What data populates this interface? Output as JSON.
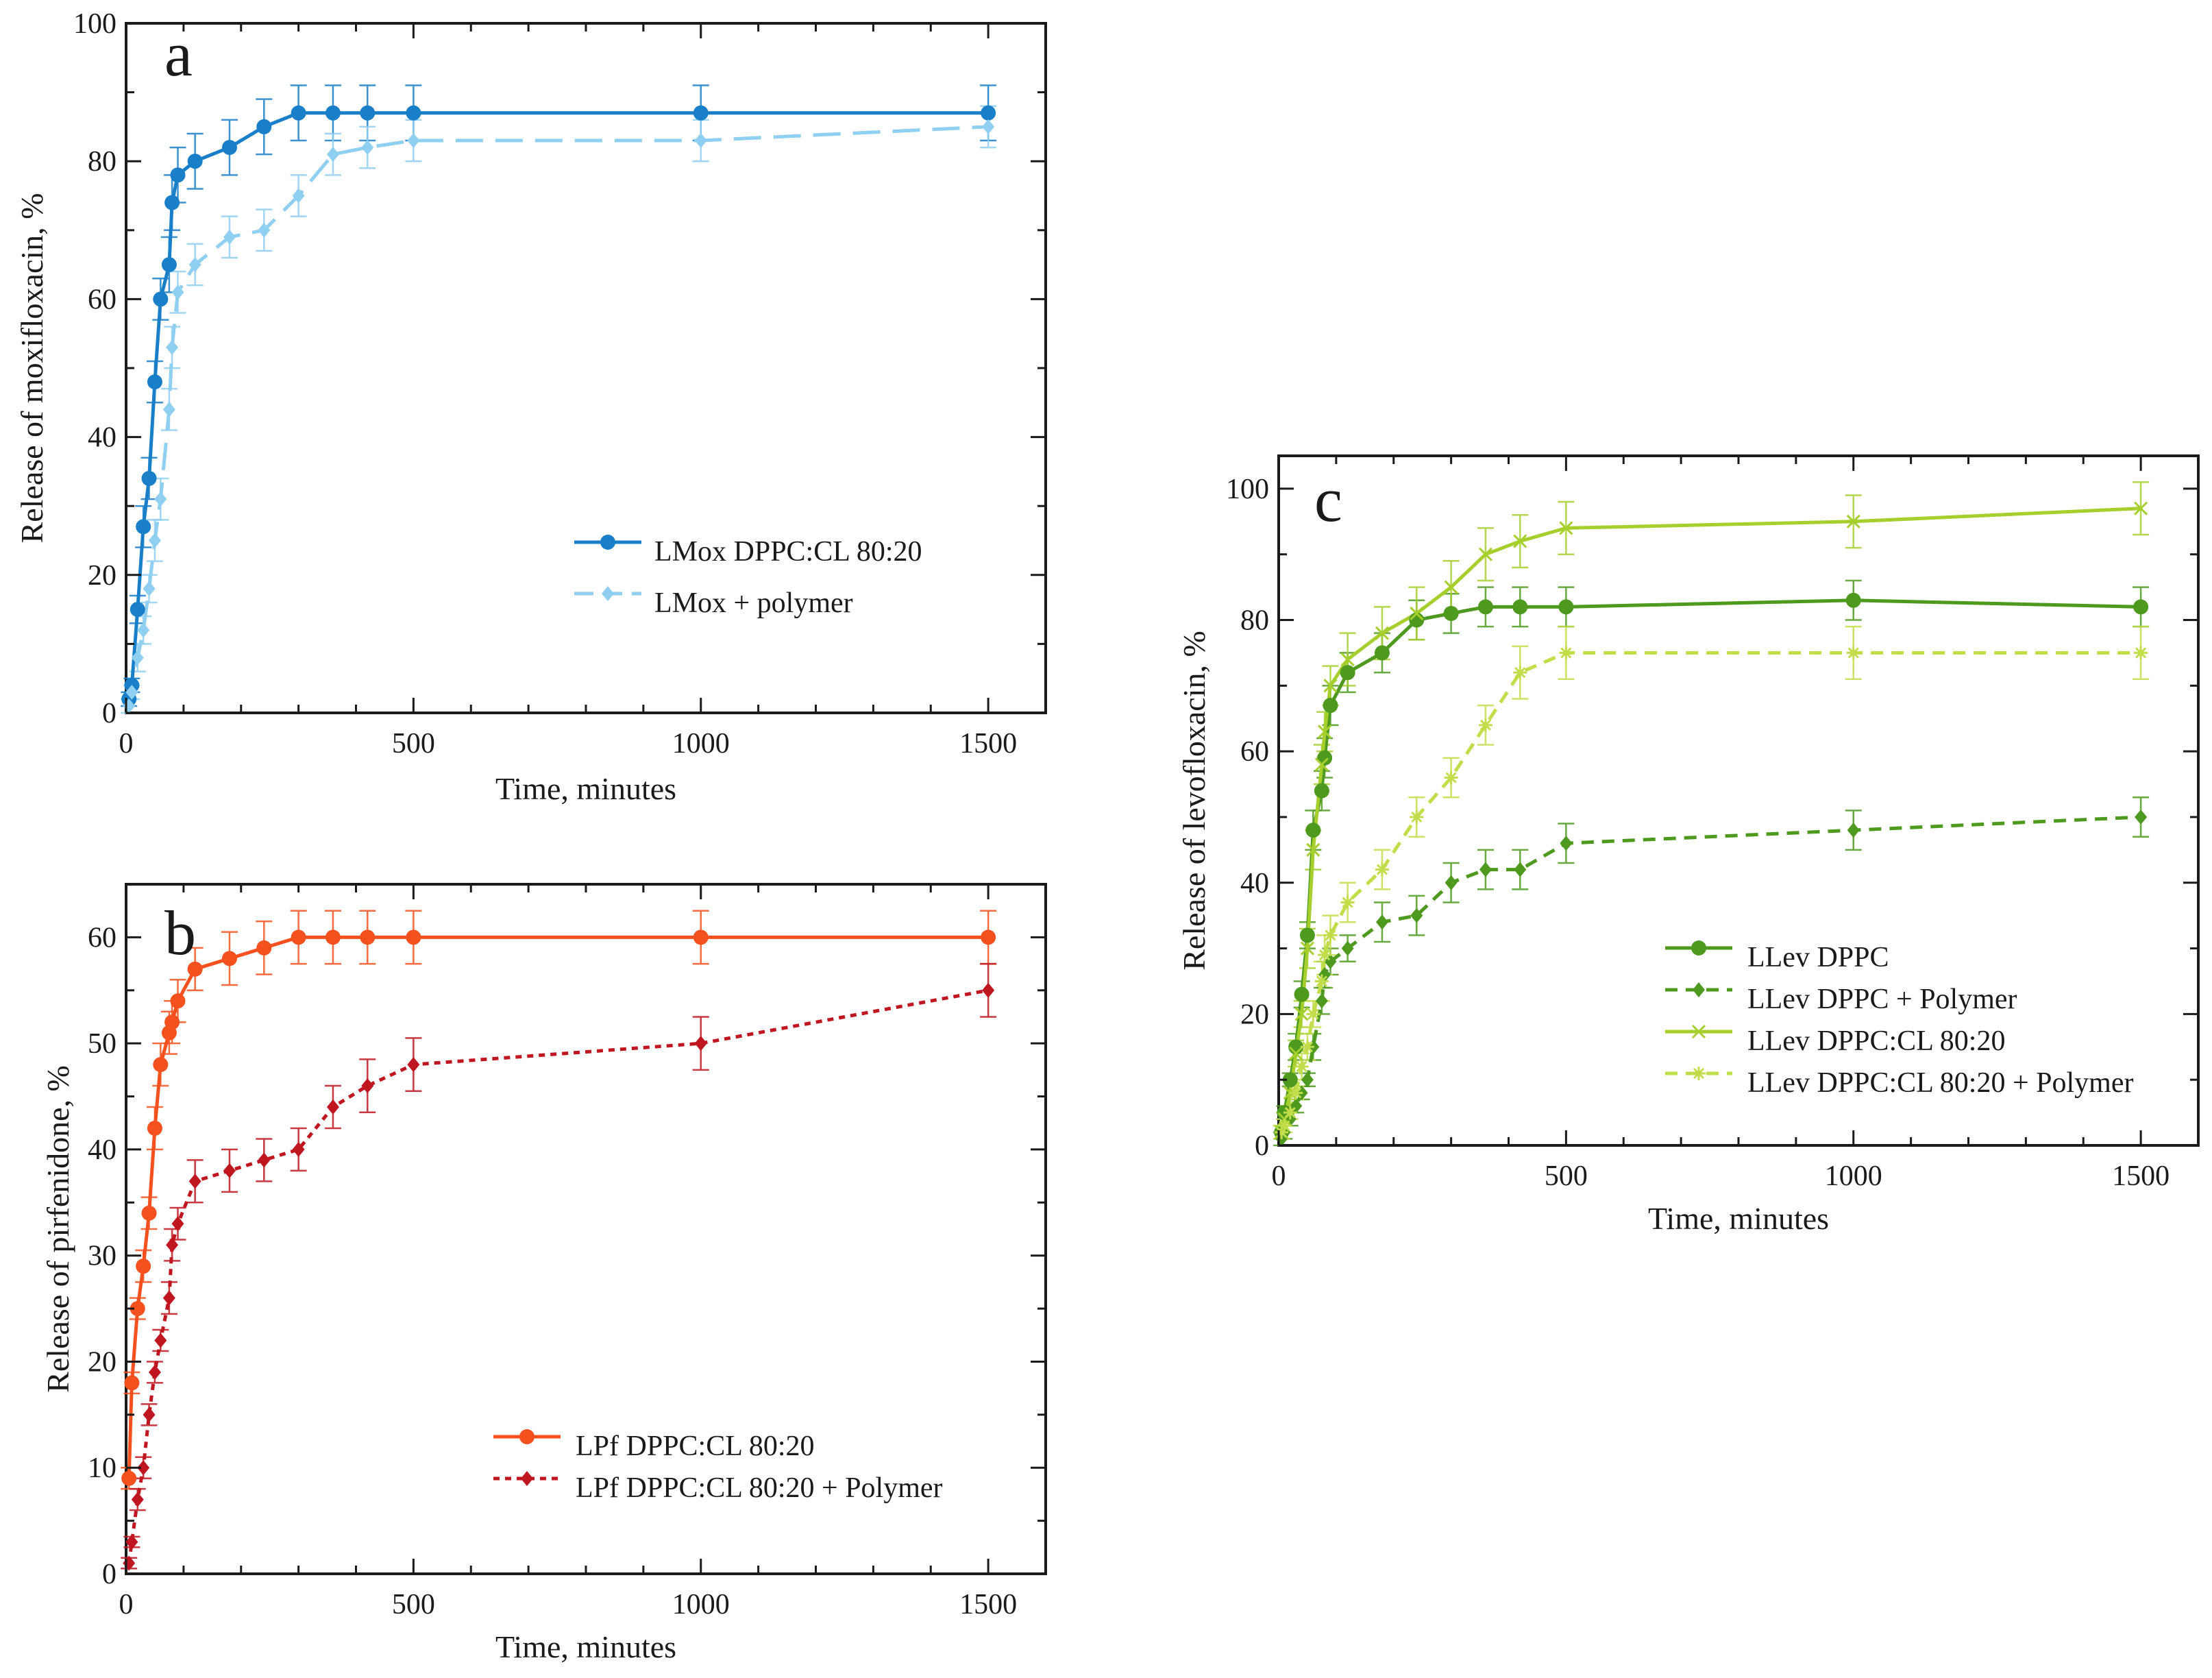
{
  "chart_data": [
    {
      "panel": "a",
      "type": "line",
      "xlabel": "Time, minutes",
      "ylabel": "Release of moxifloxacin, %",
      "xlim": [
        0,
        1600
      ],
      "ylim": [
        0,
        100
      ],
      "xticks": [
        0,
        500,
        1000,
        1500
      ],
      "yticks": [
        0,
        20,
        40,
        60,
        80,
        100
      ],
      "grid": false,
      "legend_position": "center-right",
      "series": [
        {
          "name": "LMox DPPC:CL 80:20",
          "color": "#1a7fc9",
          "marker": "circle",
          "dash": "solid",
          "x": [
            5,
            10,
            20,
            30,
            40,
            50,
            60,
            75,
            80,
            90,
            120,
            180,
            240,
            300,
            360,
            420,
            500,
            1000,
            1500
          ],
          "y": [
            2,
            4,
            15,
            27,
            34,
            48,
            60,
            65,
            74,
            78,
            80,
            82,
            85,
            87,
            87,
            87,
            87,
            87,
            87
          ],
          "err": [
            1,
            1,
            2,
            3,
            3,
            3,
            3,
            4,
            4,
            4,
            4,
            4,
            4,
            4,
            4,
            4,
            4,
            4,
            4
          ]
        },
        {
          "name": "LMox + polymer",
          "color": "#8fcff2",
          "marker": "diamond",
          "dash": "long-dash",
          "x": [
            5,
            10,
            20,
            30,
            40,
            50,
            60,
            75,
            80,
            90,
            120,
            180,
            240,
            300,
            360,
            420,
            500,
            1000,
            1500
          ],
          "y": [
            1,
            3,
            8,
            12,
            18,
            25,
            31,
            44,
            53,
            61,
            65,
            69,
            70,
            75,
            81,
            82,
            83,
            83,
            85
          ],
          "err": [
            1,
            1,
            2,
            2,
            2,
            3,
            3,
            3,
            3,
            3,
            3,
            3,
            3,
            3,
            3,
            3,
            3,
            3,
            3
          ]
        }
      ]
    },
    {
      "panel": "b",
      "type": "line",
      "xlabel": "Time, minutes",
      "ylabel": "Release of pirfenidone, %",
      "xlim": [
        0,
        1600
      ],
      "ylim": [
        0,
        65
      ],
      "xticks": [
        0,
        500,
        1000,
        1500
      ],
      "yticks": [
        0,
        10,
        20,
        30,
        40,
        50,
        60
      ],
      "grid": false,
      "legend_position": "bottom-right",
      "series": [
        {
          "name": "LPf DPPC:CL 80:20",
          "color": "#f4511e",
          "marker": "circle",
          "dash": "solid",
          "x": [
            5,
            10,
            20,
            30,
            40,
            50,
            60,
            75,
            80,
            90,
            120,
            180,
            240,
            300,
            360,
            420,
            500,
            1000,
            1500
          ],
          "y": [
            9,
            18,
            25,
            29,
            34,
            42,
            48,
            51,
            52,
            54,
            57,
            58,
            59,
            60,
            60,
            60,
            60,
            60,
            60
          ],
          "err": [
            1,
            1,
            1,
            1.5,
            1.5,
            2,
            2,
            2,
            2,
            2,
            2,
            2.5,
            2.5,
            2.5,
            2.5,
            2.5,
            2.5,
            2.5,
            2.5
          ]
        },
        {
          "name": "LPf DPPC:CL 80:20 + Polymer",
          "color": "#c01620",
          "marker": "diamond",
          "dash": "dotted",
          "x": [
            5,
            10,
            20,
            30,
            40,
            50,
            60,
            75,
            80,
            90,
            120,
            180,
            240,
            300,
            360,
            420,
            500,
            1000,
            1500
          ],
          "y": [
            1,
            3,
            7,
            10,
            15,
            19,
            22,
            26,
            31,
            33,
            37,
            38,
            39,
            40,
            44,
            46,
            48,
            50,
            55
          ],
          "err": [
            0.5,
            0.5,
            1,
            1,
            1,
            1,
            1,
            1.5,
            1.5,
            1.5,
            2,
            2,
            2,
            2,
            2,
            2.5,
            2.5,
            2.5,
            2.5
          ]
        }
      ]
    },
    {
      "panel": "c",
      "type": "line",
      "xlabel": "Time, minutes",
      "ylabel": "Release of levofloxacin, %",
      "xlim": [
        0,
        1600
      ],
      "ylim": [
        0,
        105
      ],
      "xticks": [
        0,
        500,
        1000,
        1500
      ],
      "yticks": [
        0,
        20,
        40,
        60,
        80,
        100
      ],
      "grid": false,
      "legend_position": "bottom-right",
      "series": [
        {
          "name": "LLev DPPC",
          "color": "#4d9a1f",
          "marker": "circle",
          "dash": "solid",
          "x": [
            5,
            10,
            20,
            30,
            40,
            50,
            60,
            75,
            80,
            90,
            120,
            180,
            240,
            300,
            360,
            420,
            500,
            1000,
            1500
          ],
          "y": [
            2,
            5,
            10,
            15,
            23,
            32,
            48,
            54,
            59,
            67,
            72,
            75,
            80,
            81,
            82,
            82,
            82,
            83,
            82
          ],
          "err": [
            1,
            1,
            1,
            2,
            2,
            2,
            3,
            3,
            3,
            3,
            3,
            3,
            3,
            3,
            3,
            3,
            3,
            3,
            3
          ]
        },
        {
          "name": "LLev DPPC + Polymer",
          "color": "#4d9a1f",
          "marker": "diamond",
          "dash": "dashed",
          "x": [
            5,
            10,
            20,
            30,
            40,
            50,
            60,
            75,
            80,
            90,
            120,
            180,
            240,
            300,
            360,
            420,
            500,
            1000,
            1500
          ],
          "y": [
            1,
            2,
            4,
            6,
            8,
            10,
            15,
            22,
            26,
            28,
            30,
            34,
            35,
            40,
            42,
            42,
            46,
            48,
            50
          ],
          "err": [
            1,
            1,
            1,
            1,
            1,
            1,
            2,
            2,
            2,
            2,
            2,
            3,
            3,
            3,
            3,
            3,
            3,
            3,
            3
          ]
        },
        {
          "name": "LLev DPPC:CL 80:20",
          "color": "#a6cf2e",
          "marker": "x",
          "dash": "solid",
          "x": [
            5,
            10,
            20,
            30,
            40,
            50,
            60,
            75,
            80,
            90,
            120,
            180,
            240,
            300,
            360,
            420,
            500,
            1000,
            1500
          ],
          "y": [
            2,
            4,
            8,
            14,
            20,
            30,
            45,
            58,
            63,
            70,
            74,
            78,
            81,
            85,
            90,
            92,
            94,
            95,
            97
          ],
          "err": [
            1,
            1,
            2,
            2,
            2,
            3,
            3,
            3,
            3,
            3,
            4,
            4,
            4,
            4,
            4,
            4,
            4,
            4,
            4
          ]
        },
        {
          "name": "LLev DPPC:CL 80:20 + Polymer",
          "color": "#c2dd4a",
          "marker": "star",
          "dash": "dashed",
          "x": [
            5,
            10,
            20,
            30,
            40,
            50,
            60,
            75,
            80,
            90,
            120,
            180,
            240,
            300,
            360,
            420,
            500,
            1000,
            1500
          ],
          "y": [
            2,
            3,
            5,
            8,
            12,
            15,
            20,
            25,
            29,
            32,
            37,
            42,
            50,
            56,
            64,
            72,
            75,
            75,
            75
          ],
          "err": [
            1,
            1,
            1,
            1,
            2,
            2,
            2,
            3,
            3,
            3,
            3,
            3,
            3,
            3,
            3,
            4,
            4,
            4,
            4
          ]
        }
      ]
    }
  ]
}
